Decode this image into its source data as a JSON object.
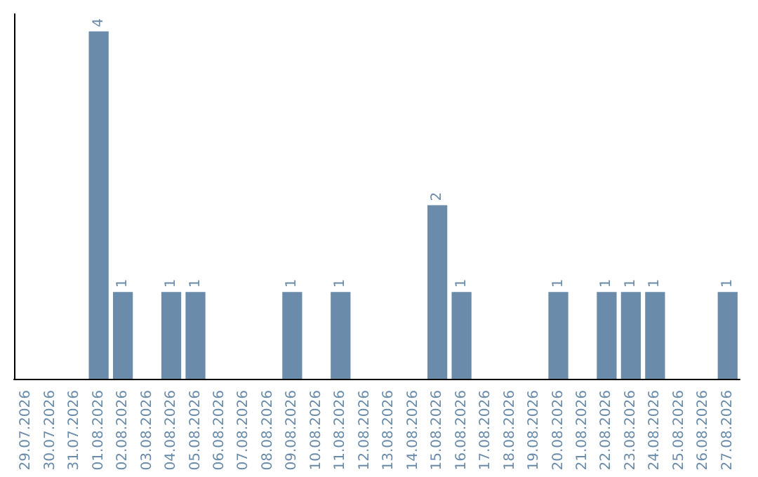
{
  "chart_data": {
    "type": "bar",
    "categories": [
      "29.07.2026",
      "30.07.2026",
      "31.07.2026",
      "01.08.2026",
      "02.08.2026",
      "03.08.2026",
      "04.08.2026",
      "05.08.2026",
      "06.08.2026",
      "07.08.2026",
      "08.08.2026",
      "09.08.2026",
      "10.08.2026",
      "11.08.2026",
      "12.08.2026",
      "13.08.2026",
      "14.08.2026",
      "15.08.2026",
      "16.08.2026",
      "17.08.2026",
      "18.08.2026",
      "19.08.2026",
      "20.08.2026",
      "21.08.2026",
      "22.08.2026",
      "23.08.2026",
      "24.08.2026",
      "25.08.2026",
      "26.08.2026",
      "27.08.2026"
    ],
    "values": [
      0,
      0,
      0,
      4,
      1,
      0,
      1,
      1,
      0,
      0,
      0,
      1,
      0,
      1,
      0,
      0,
      0,
      2,
      1,
      0,
      0,
      0,
      1,
      0,
      1,
      1,
      1,
      0,
      0,
      1
    ],
    "value_labels": [
      null,
      null,
      null,
      "4",
      "1",
      null,
      "1",
      "1",
      null,
      null,
      null,
      "1",
      null,
      "1",
      null,
      null,
      null,
      "2",
      "1",
      null,
      null,
      null,
      "1",
      null,
      "1",
      "1",
      "1",
      null,
      null,
      "1"
    ],
    "color": "#6a8caa",
    "ylim": [
      0,
      4.2
    ],
    "tick_labels": "x",
    "grid": false
  }
}
